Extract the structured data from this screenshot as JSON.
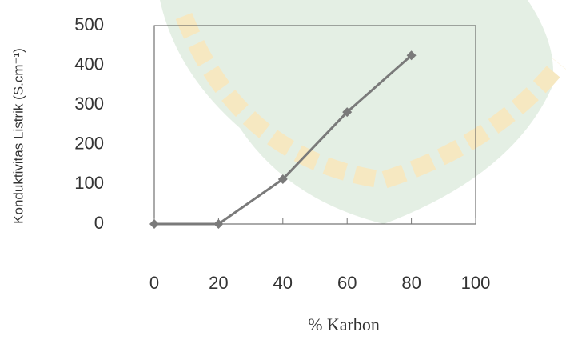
{
  "chart_data": {
    "type": "line",
    "x_label": "% Karbon",
    "y_label": "Konduktivitas Listrik (S.cm⁻¹)",
    "x": [
      0,
      20,
      40,
      60,
      80
    ],
    "series": [
      {
        "color": "#7a7a7a",
        "values": [
          0,
          0,
          113,
          282,
          425
        ]
      }
    ],
    "xlim": [
      0,
      100
    ],
    "xticks": [
      0,
      20,
      40,
      60,
      80,
      100
    ],
    "ylim": [
      0,
      500
    ],
    "yticks": [
      0,
      100,
      200,
      300,
      400,
      500
    ],
    "grid": false
  }
}
